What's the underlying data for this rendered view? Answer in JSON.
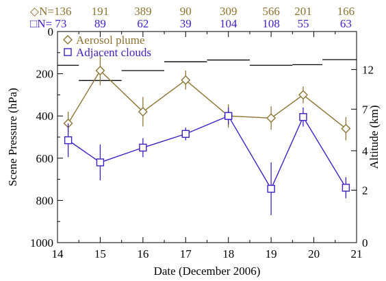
{
  "chart_data": {
    "type": "line",
    "title": "",
    "xlabel": "Date (December 2006)",
    "ylabel": "Scene Pressure (hPa)",
    "y2label": "Altitude (km)",
    "xlim": [
      14,
      21
    ],
    "ylim": [
      1000,
      0
    ],
    "y2_ticks": [
      0,
      2,
      4,
      7,
      12
    ],
    "x_ticks": [
      14,
      15,
      16,
      17,
      18,
      19,
      20,
      21
    ],
    "y_ticks": [
      0,
      200,
      400,
      600,
      800,
      1000
    ],
    "grid": false,
    "legend_position": "top-left",
    "series": [
      {
        "name": "Aerosol plume",
        "color": "#8B7332",
        "marker": "diamond",
        "x": [
          14.25,
          15.0,
          16.0,
          17.0,
          18.0,
          19.0,
          19.75,
          20.75
        ],
        "y": [
          435,
          185,
          380,
          230,
          400,
          410,
          300,
          460
        ],
        "err": [
          55,
          70,
          70,
          45,
          55,
          55,
          40,
          55
        ],
        "counts": [
          "N=136",
          "191",
          "389",
          "90",
          "309",
          "566",
          "201",
          "166"
        ],
        "count_prefix": "◇"
      },
      {
        "name": "Adjacent clouds",
        "color": "#3D1FC4",
        "marker": "square",
        "x": [
          14.25,
          15.0,
          16.0,
          17.0,
          18.0,
          19.0,
          19.75,
          20.75
        ],
        "y": [
          515,
          620,
          550,
          485,
          400,
          745,
          405,
          740
        ],
        "err": [
          80,
          85,
          45,
          30,
          40,
          125,
          45,
          50
        ],
        "counts": [
          "N= 73",
          "89",
          "62",
          "39",
          "104",
          "108",
          "55",
          "63"
        ],
        "count_prefix": "□"
      }
    ],
    "tropopause_segments": [
      {
        "x": [
          14.0,
          14.5
        ],
        "y": 160
      },
      {
        "x": [
          14.5,
          15.5
        ],
        "y": 232
      },
      {
        "x": [
          15.5,
          16.5
        ],
        "y": 185
      },
      {
        "x": [
          16.5,
          17.5
        ],
        "y": 143
      },
      {
        "x": [
          17.5,
          18.5
        ],
        "y": 135
      },
      {
        "x": [
          18.5,
          19.5
        ],
        "y": 160
      },
      {
        "x": [
          19.5,
          20.2
        ],
        "y": 157
      },
      {
        "x": [
          20.2,
          21.0
        ],
        "y": 133
      }
    ]
  }
}
